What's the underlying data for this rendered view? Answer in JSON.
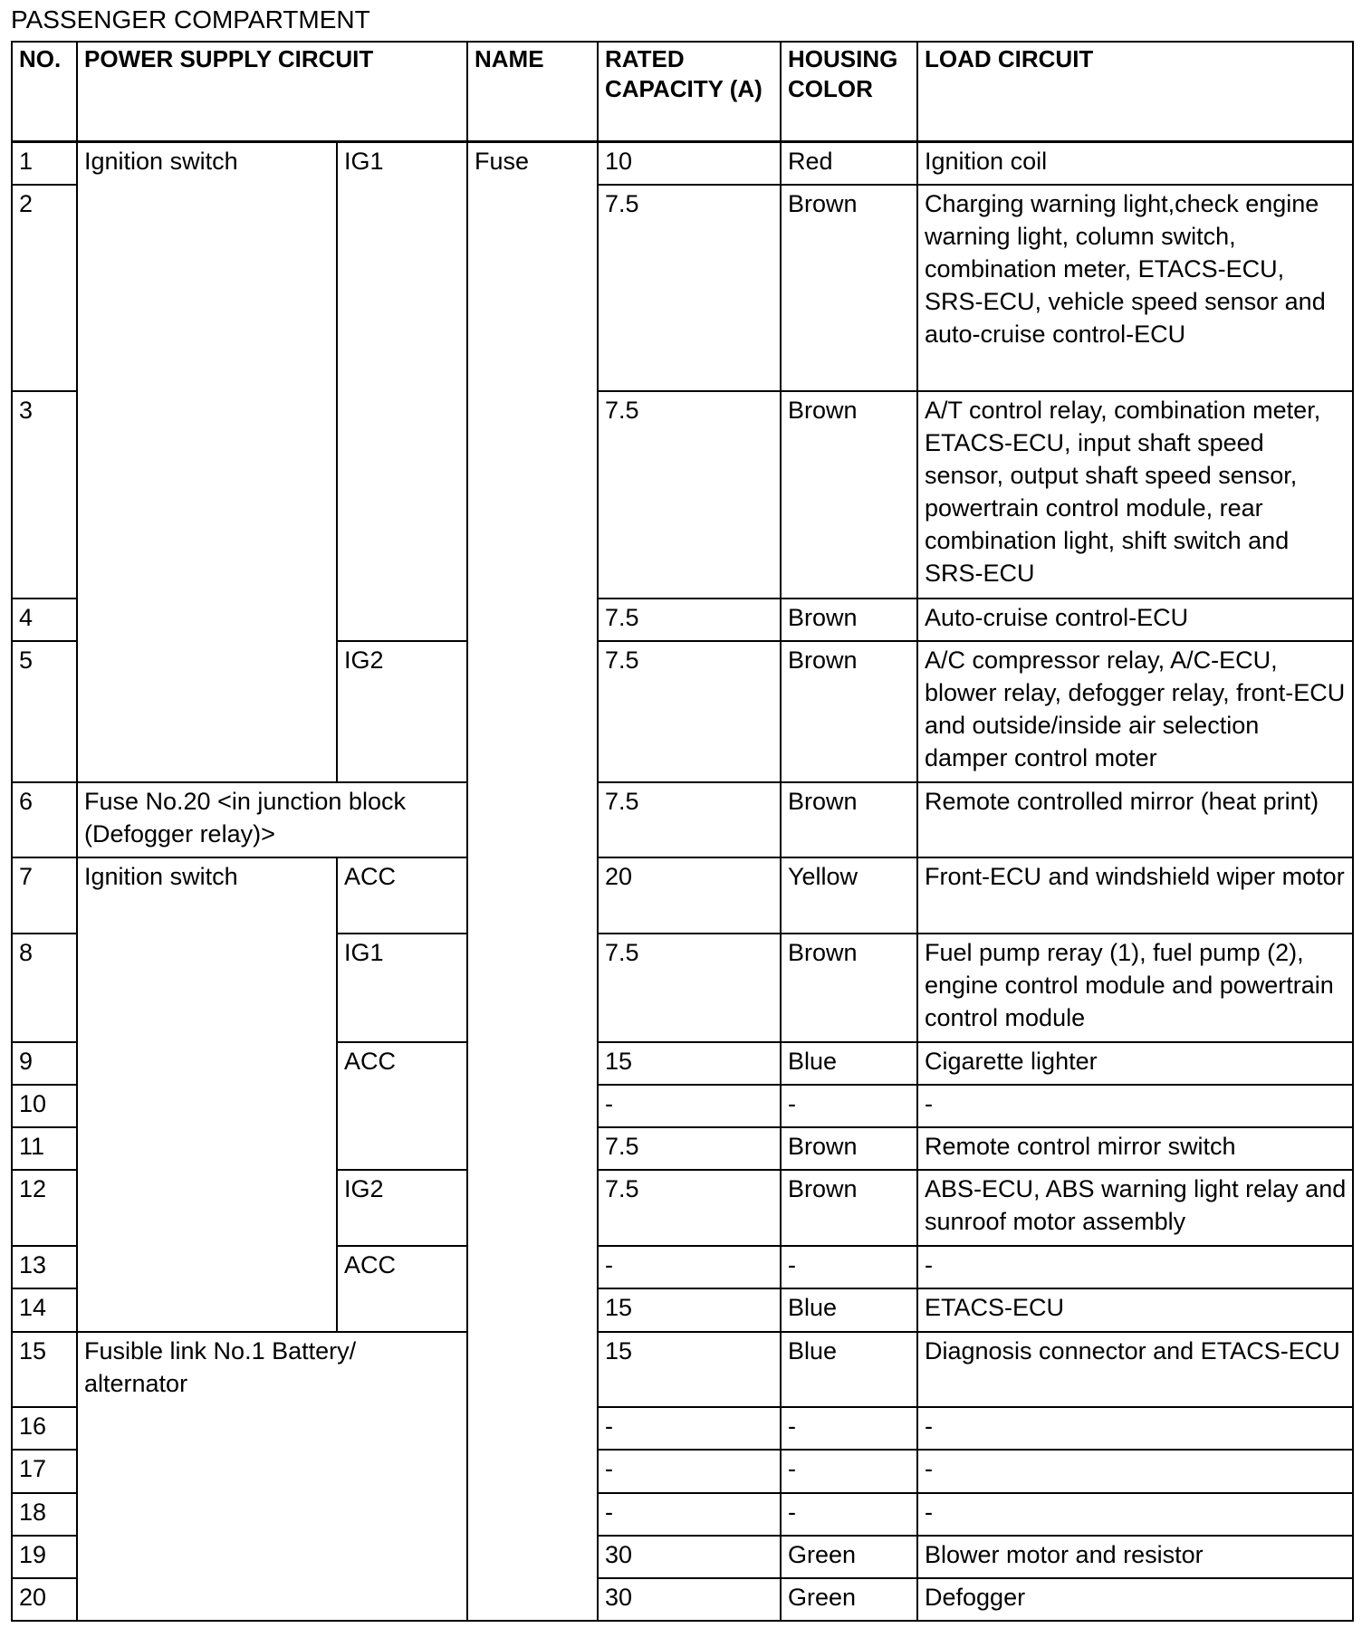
{
  "title": "PASSENGER COMPARTMENT",
  "headers": {
    "no": "NO.",
    "power_supply_circuit": "POWER SUPPLY CIRCUIT",
    "name": "NAME",
    "rated_capacity": "RATED CAPACITY (A)",
    "housing_color": "HOUSING COLOR",
    "load_circuit": "LOAD CIRCUIT"
  },
  "name_value": "Fuse",
  "power_supply_groups": [
    {
      "label": "Ignition switch",
      "rows": [
        1,
        5
      ],
      "sub": [
        {
          "label": "IG1",
          "rows": [
            1,
            4
          ]
        },
        {
          "label": "IG2",
          "rows": [
            5,
            5
          ]
        }
      ]
    },
    {
      "label": "Fuse No.20 <in junction block (Defogger relay)>",
      "rows": [
        6,
        6
      ],
      "sub": []
    },
    {
      "label": "Ignition switch",
      "rows": [
        7,
        14
      ],
      "sub": [
        {
          "label": "ACC",
          "rows": [
            7,
            7
          ]
        },
        {
          "label": "IG1",
          "rows": [
            8,
            8
          ]
        },
        {
          "label": "ACC",
          "rows": [
            9,
            11
          ]
        },
        {
          "label": "IG2",
          "rows": [
            12,
            12
          ]
        },
        {
          "label": "ACC",
          "rows": [
            13,
            14
          ]
        }
      ]
    },
    {
      "label": "Fusible link No.1 Battery/ alternator",
      "rows": [
        15,
        20
      ],
      "sub": []
    }
  ],
  "rows": [
    {
      "no": "1",
      "rated": "10",
      "color": "Red",
      "load": "Ignition coil"
    },
    {
      "no": "2",
      "rated": "7.5",
      "color": "Brown",
      "load": "Charging warning light,check engine warning light, column switch, combination meter, ETACS-ECU, SRS-ECU, vehicle speed sensor and auto-cruise control-ECU"
    },
    {
      "no": "3",
      "rated": "7.5",
      "color": "Brown",
      "load": "A/T control relay, combination meter, ETACS-ECU, input shaft speed sensor, output shaft speed sensor, powertrain control module, rear combination light, shift switch and SRS-ECU"
    },
    {
      "no": "4",
      "rated": "7.5",
      "color": "Brown",
      "load": "Auto-cruise control-ECU"
    },
    {
      "no": "5",
      "rated": "7.5",
      "color": "Brown",
      "load": "A/C compressor relay, A/C-ECU, blower relay, defogger relay, front-ECU and outside/inside air selection damper control moter"
    },
    {
      "no": "6",
      "rated": "7.5",
      "color": "Brown",
      "load": "Remote controlled mirror (heat print)"
    },
    {
      "no": "7",
      "rated": "20",
      "color": "Yellow",
      "load": "Front-ECU and windshield wiper motor"
    },
    {
      "no": "8",
      "rated": "7.5",
      "color": "Brown",
      "load": "Fuel pump reray (1), fuel pump (2), engine control module and powertrain control module"
    },
    {
      "no": "9",
      "rated": "15",
      "color": "Blue",
      "load": "Cigarette lighter"
    },
    {
      "no": "10",
      "rated": "-",
      "color": "-",
      "load": "-"
    },
    {
      "no": "11",
      "rated": "7.5",
      "color": "Brown",
      "load": "Remote control mirror switch"
    },
    {
      "no": "12",
      "rated": "7.5",
      "color": "Brown",
      "load": "ABS-ECU, ABS warning light relay and sunroof motor assembly"
    },
    {
      "no": "13",
      "rated": "-",
      "color": "-",
      "load": "-"
    },
    {
      "no": "14",
      "rated": "15",
      "color": "Blue",
      "load": "ETACS-ECU"
    },
    {
      "no": "15",
      "rated": "15",
      "color": "Blue",
      "load": "Diagnosis connector and ETACS-ECU"
    },
    {
      "no": "16",
      "rated": "-",
      "color": "-",
      "load": "-"
    },
    {
      "no": "17",
      "rated": "-",
      "color": "-",
      "load": "-"
    },
    {
      "no": "18",
      "rated": "-",
      "color": "-",
      "load": "-"
    },
    {
      "no": "19",
      "rated": "30",
      "color": "Green",
      "load": "Blower motor and resistor"
    },
    {
      "no": "20",
      "rated": "30",
      "color": "Green",
      "load": "Defogger"
    }
  ]
}
